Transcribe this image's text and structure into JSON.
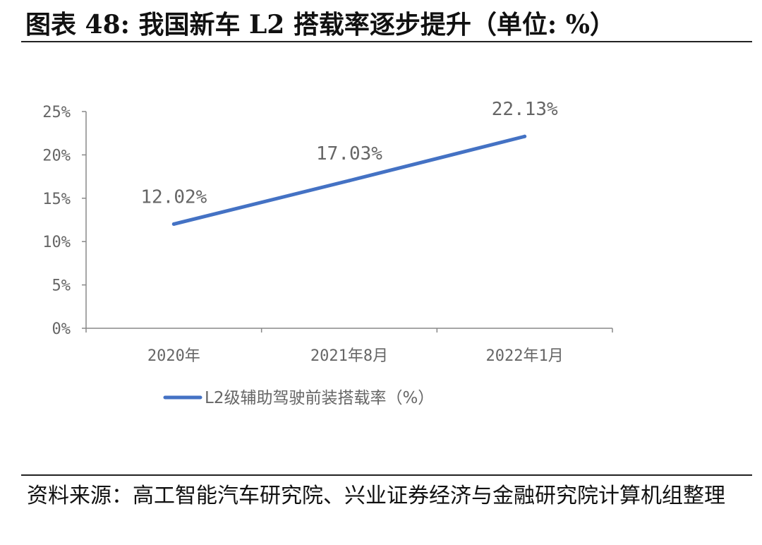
{
  "title": "图表 48:  我国新车 L2 搭载率逐步提升（单位:  %）",
  "source": "资料来源：高工智能汽车研究院、兴业证券经济与金融研究院计算机组整理",
  "chart_data": {
    "type": "line",
    "categories": [
      "2020年",
      "2021年8月",
      "2022年1月"
    ],
    "series": [
      {
        "name": "L2级辅助驾驶前装搭载率（%）",
        "values": [
          12.02,
          17.03,
          22.13
        ]
      }
    ],
    "data_labels": [
      "12.02%",
      "17.03%",
      "22.13%"
    ],
    "y_ticks": [
      "0%",
      "5%",
      "10%",
      "15%",
      "20%",
      "25%"
    ],
    "ylim": [
      0,
      25
    ],
    "grid": false,
    "legend_position": "bottom",
    "line_color": "#4472C4"
  }
}
